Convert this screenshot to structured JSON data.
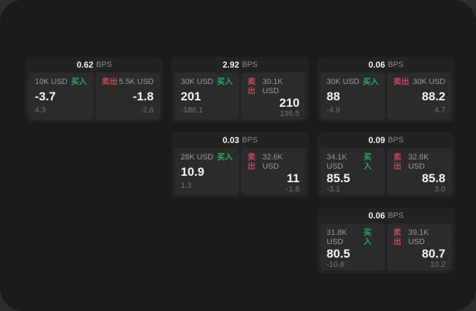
{
  "labels": {
    "bps_unit": "BPS",
    "buy": "买入",
    "sell": "卖出"
  },
  "colors": {
    "buy_accent": "#2fa863",
    "sell_accent": "#c0485c",
    "surface": "#1b1b1b",
    "card": "#222222",
    "panel": "#2b2b2b"
  },
  "cards": [
    {
      "bps": "0.62",
      "buy": {
        "amount": "10K USD",
        "value": "-3.7",
        "change": "4.3"
      },
      "sell": {
        "amount": "5.5K USD",
        "value": "-1.8",
        "change": "-2.6"
      }
    },
    {
      "bps": "2.92",
      "buy": {
        "amount": "30K USD",
        "value": "201",
        "change": "-188.1"
      },
      "sell": {
        "amount": "30.1K USD",
        "value": "210",
        "change": "196.5"
      }
    },
    {
      "bps": "0.06",
      "buy": {
        "amount": "30K USD",
        "value": "88",
        "change": "-4.9"
      },
      "sell": {
        "amount": "30K USD",
        "value": "88.2",
        "change": "4.7"
      }
    },
    {
      "bps": "0.03",
      "buy": {
        "amount": "28K USD",
        "value": "10.9",
        "change": "1.3"
      },
      "sell": {
        "amount": "32.6K USD",
        "value": "11",
        "change": "-1.8"
      }
    },
    {
      "bps": "0.09",
      "buy": {
        "amount": "34.1K USD",
        "value": "85.5",
        "change": "-3.1"
      },
      "sell": {
        "amount": "32.8K USD",
        "value": "85.8",
        "change": "3.0"
      }
    },
    {
      "bps": "0.06",
      "buy": {
        "amount": "31.8K USD",
        "value": "80.5",
        "change": "-10.8"
      },
      "sell": {
        "amount": "39.1K USD",
        "value": "80.7",
        "change": "10.2"
      }
    }
  ]
}
